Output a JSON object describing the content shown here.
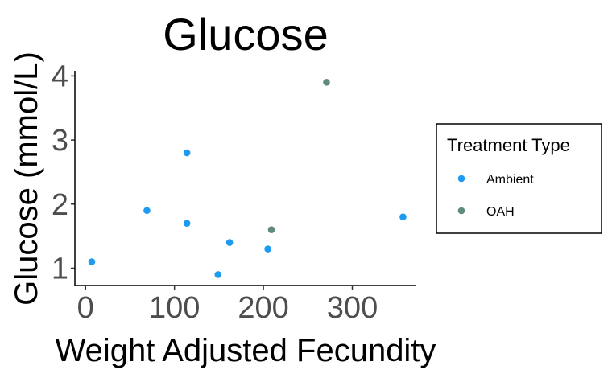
{
  "chart_data": {
    "type": "scatter",
    "title": "Glucose",
    "xlabel": "Weight Adjusted Fecundity",
    "ylabel": "Glucose (mmol/L)",
    "xlim": [
      -12,
      372
    ],
    "ylim": [
      0.73,
      4.08
    ],
    "xticks": [
      0,
      100,
      200,
      300
    ],
    "yticks": [
      1,
      2,
      3,
      4
    ],
    "grid": false,
    "legend": {
      "title": "Treatment Type",
      "placement": "right"
    },
    "series": [
      {
        "name": "Ambient",
        "color": "#1e9bf0",
        "points": [
          {
            "x": 7,
            "y": 1.1
          },
          {
            "x": 69,
            "y": 1.9
          },
          {
            "x": 114,
            "y": 2.8
          },
          {
            "x": 114,
            "y": 1.7
          },
          {
            "x": 149,
            "y": 0.9
          },
          {
            "x": 162,
            "y": 1.4
          },
          {
            "x": 205,
            "y": 1.3
          },
          {
            "x": 357,
            "y": 1.8
          }
        ]
      },
      {
        "name": "OAH",
        "color": "#5f8a7c",
        "points": [
          {
            "x": 209,
            "y": 1.6
          },
          {
            "x": 271,
            "y": 3.9
          }
        ]
      }
    ]
  }
}
